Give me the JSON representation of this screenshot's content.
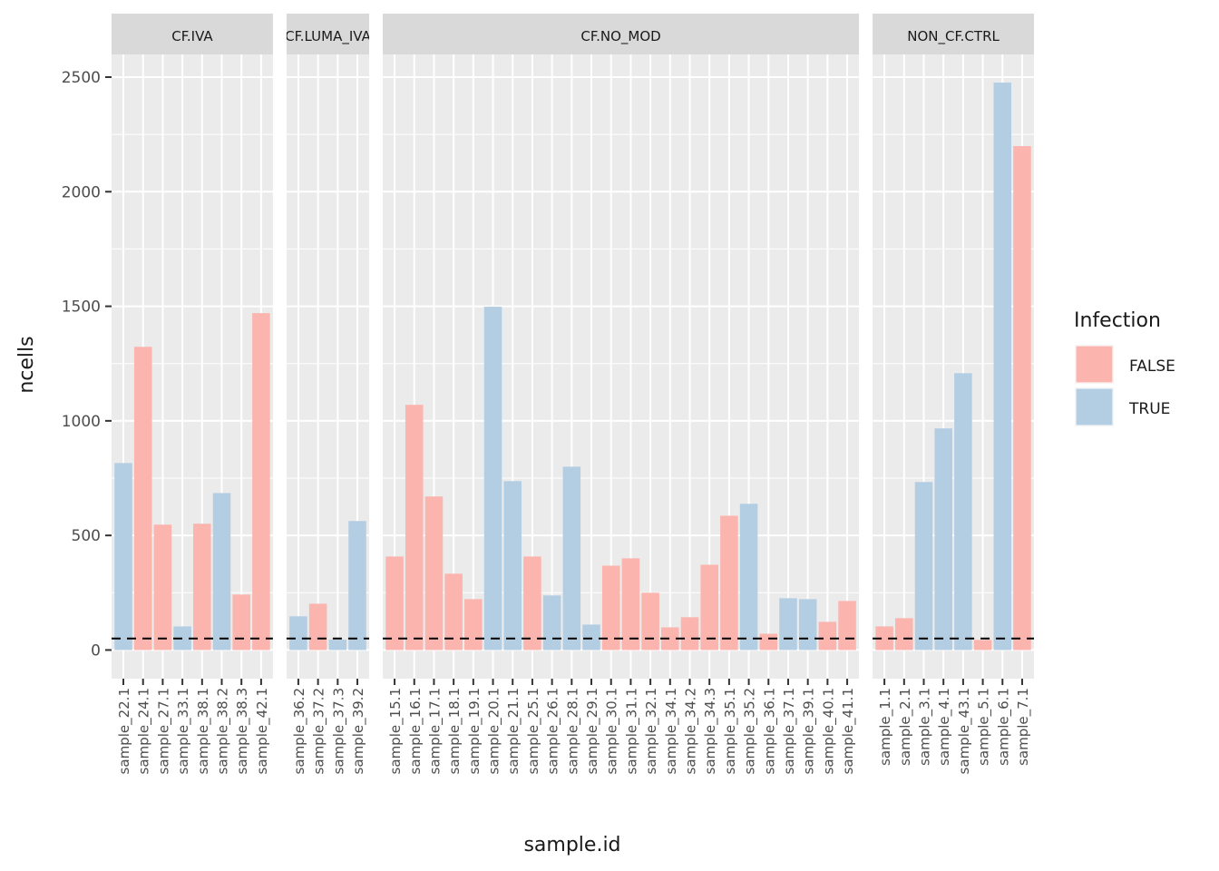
{
  "xlabel": "sample.id",
  "ylabel": "ncells",
  "reference_line": 50,
  "legend": {
    "title": "Infection",
    "entries": [
      {
        "name": "FALSE",
        "color": "#FBB4AE"
      },
      {
        "name": "TRUE",
        "color": "#B3CDE3"
      }
    ]
  },
  "chart_data": [
    {
      "type": "bar",
      "title": "CF.IVA",
      "categories": [
        "sample_22.1",
        "sample_24.1",
        "sample_27.1",
        "sample_33.1",
        "sample_38.1",
        "sample_38.2",
        "sample_38.3",
        "sample_42.1"
      ],
      "values": [
        816,
        1323,
        547,
        103,
        551,
        685,
        242,
        1470
      ],
      "infection": [
        "TRUE",
        "FALSE",
        "FALSE",
        "TRUE",
        "FALSE",
        "TRUE",
        "FALSE",
        "FALSE"
      ],
      "ylim": [
        -125,
        2599
      ],
      "yticks": [
        0,
        500,
        1000,
        1500,
        2000,
        2500
      ],
      "grid": true
    },
    {
      "type": "bar",
      "title": "CF.LUMA_IVA",
      "categories": [
        "sample_36.2",
        "sample_37.2",
        "sample_37.3",
        "sample_39.2"
      ],
      "values": [
        147,
        202,
        45,
        563
      ],
      "infection": [
        "TRUE",
        "FALSE",
        "TRUE",
        "TRUE"
      ],
      "ylim": [
        -125,
        2599
      ],
      "yticks": [
        0,
        500,
        1000,
        1500,
        2000,
        2500
      ],
      "grid": true
    },
    {
      "type": "bar",
      "title": "CF.NO_MOD",
      "categories": [
        "sample_15.1",
        "sample_16.1",
        "sample_17.1",
        "sample_18.1",
        "sample_19.1",
        "sample_20.1",
        "sample_21.1",
        "sample_25.1",
        "sample_26.1",
        "sample_28.1",
        "sample_29.1",
        "sample_30.1",
        "sample_31.1",
        "sample_32.1",
        "sample_34.1",
        "sample_34.2",
        "sample_34.3",
        "sample_35.1",
        "sample_35.2",
        "sample_36.1",
        "sample_37.1",
        "sample_39.1",
        "sample_40.1",
        "sample_41.1"
      ],
      "values": [
        408,
        1070,
        670,
        333,
        222,
        1498,
        737,
        408,
        238,
        800,
        111,
        368,
        400,
        250,
        99,
        143,
        372,
        586,
        638,
        71,
        226,
        222,
        123,
        214
      ],
      "infection": [
        "FALSE",
        "FALSE",
        "FALSE",
        "FALSE",
        "FALSE",
        "TRUE",
        "TRUE",
        "FALSE",
        "TRUE",
        "TRUE",
        "TRUE",
        "FALSE",
        "FALSE",
        "FALSE",
        "FALSE",
        "FALSE",
        "FALSE",
        "FALSE",
        "TRUE",
        "FALSE",
        "TRUE",
        "TRUE",
        "FALSE",
        "FALSE"
      ],
      "ylim": [
        -125,
        2599
      ],
      "yticks": [
        0,
        500,
        1000,
        1500,
        2000,
        2500
      ],
      "grid": true
    },
    {
      "type": "bar",
      "title": "NON_CF.CTRL",
      "categories": [
        "sample_1.1",
        "sample_2.1",
        "sample_3.1",
        "sample_4.1",
        "sample_43.1",
        "sample_5.1",
        "sample_6.1",
        "sample_7.1"
      ],
      "values": [
        103,
        139,
        733,
        967,
        1208,
        44,
        2476,
        2199
      ],
      "infection": [
        "FALSE",
        "FALSE",
        "TRUE",
        "TRUE",
        "TRUE",
        "FALSE",
        "TRUE",
        "FALSE"
      ],
      "ylim": [
        -125,
        2599
      ],
      "yticks": [
        0,
        500,
        1000,
        1500,
        2000,
        2500
      ],
      "grid": true
    }
  ]
}
